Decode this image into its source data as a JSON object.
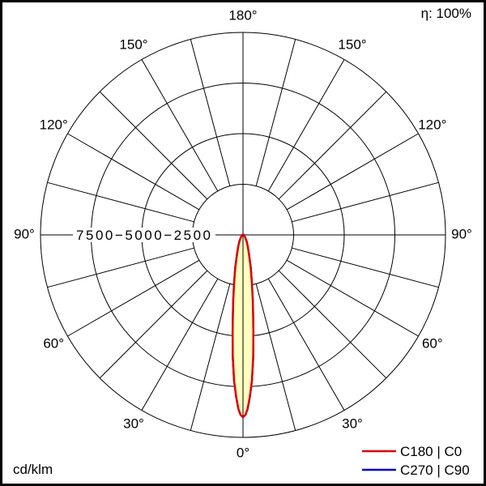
{
  "header": {
    "efficiency": "η: 100%"
  },
  "footer": {
    "unit": "cd/klm"
  },
  "legend": [
    {
      "label": "C180 | C0",
      "color": "#dd0000"
    },
    {
      "label": "C270 | C90",
      "color": "#0000cc"
    }
  ],
  "chart_data": {
    "type": "polar",
    "kind": "luminous-intensity-distribution",
    "title": "",
    "unit": "cd/klm",
    "efficiency_label": "η: 100%",
    "rings_cd_klm": [
      2500,
      5000,
      7500,
      10000
    ],
    "ring_axis_label": "7500−5000−2500",
    "spoke_step_deg": 15,
    "angle_labels": [
      {
        "text": "0°",
        "deg": 0
      },
      {
        "text": "30°",
        "deg": 30
      },
      {
        "text": "60°",
        "deg": 60
      },
      {
        "text": "90°",
        "deg": 90
      },
      {
        "text": "120°",
        "deg": 120
      },
      {
        "text": "150°",
        "deg": 150
      },
      {
        "text": "180°",
        "deg": 180
      }
    ],
    "series": [
      {
        "name": "C180 | C0",
        "color": "#dd0000",
        "fill": "#ffffc0",
        "symmetric": true,
        "gamma_deg": [
          0,
          0.8,
          1.5,
          2.4,
          3.5,
          4.8,
          6.1,
          7.1,
          8.5,
          10.4,
          13.4,
          16.7,
          21.8,
          29.4,
          36.9,
          45,
          60,
          90,
          120,
          150,
          180
        ],
        "cd_klm": [
          9000,
          8880,
          8600,
          8010,
          7210,
          6020,
          4830,
          4030,
          3240,
          2440,
          1640,
          1040,
          650,
          370,
          200,
          120,
          80,
          40,
          20,
          10,
          0
        ]
      },
      {
        "name": "C270 | C90",
        "color": "#0000cc",
        "fill": "none",
        "symmetric": true,
        "gamma_deg": [
          0,
          0.8,
          1.5,
          2.4,
          3.5,
          4.8,
          6.1,
          7.1,
          8.5,
          10.4,
          13.4,
          16.7,
          21.8,
          29.4,
          36.9,
          45,
          60,
          90,
          120,
          150,
          180
        ],
        "cd_klm": [
          9000,
          8880,
          8600,
          8010,
          7210,
          6020,
          4830,
          4030,
          3240,
          2440,
          1640,
          1040,
          650,
          370,
          200,
          120,
          80,
          40,
          20,
          10,
          0
        ]
      }
    ]
  }
}
